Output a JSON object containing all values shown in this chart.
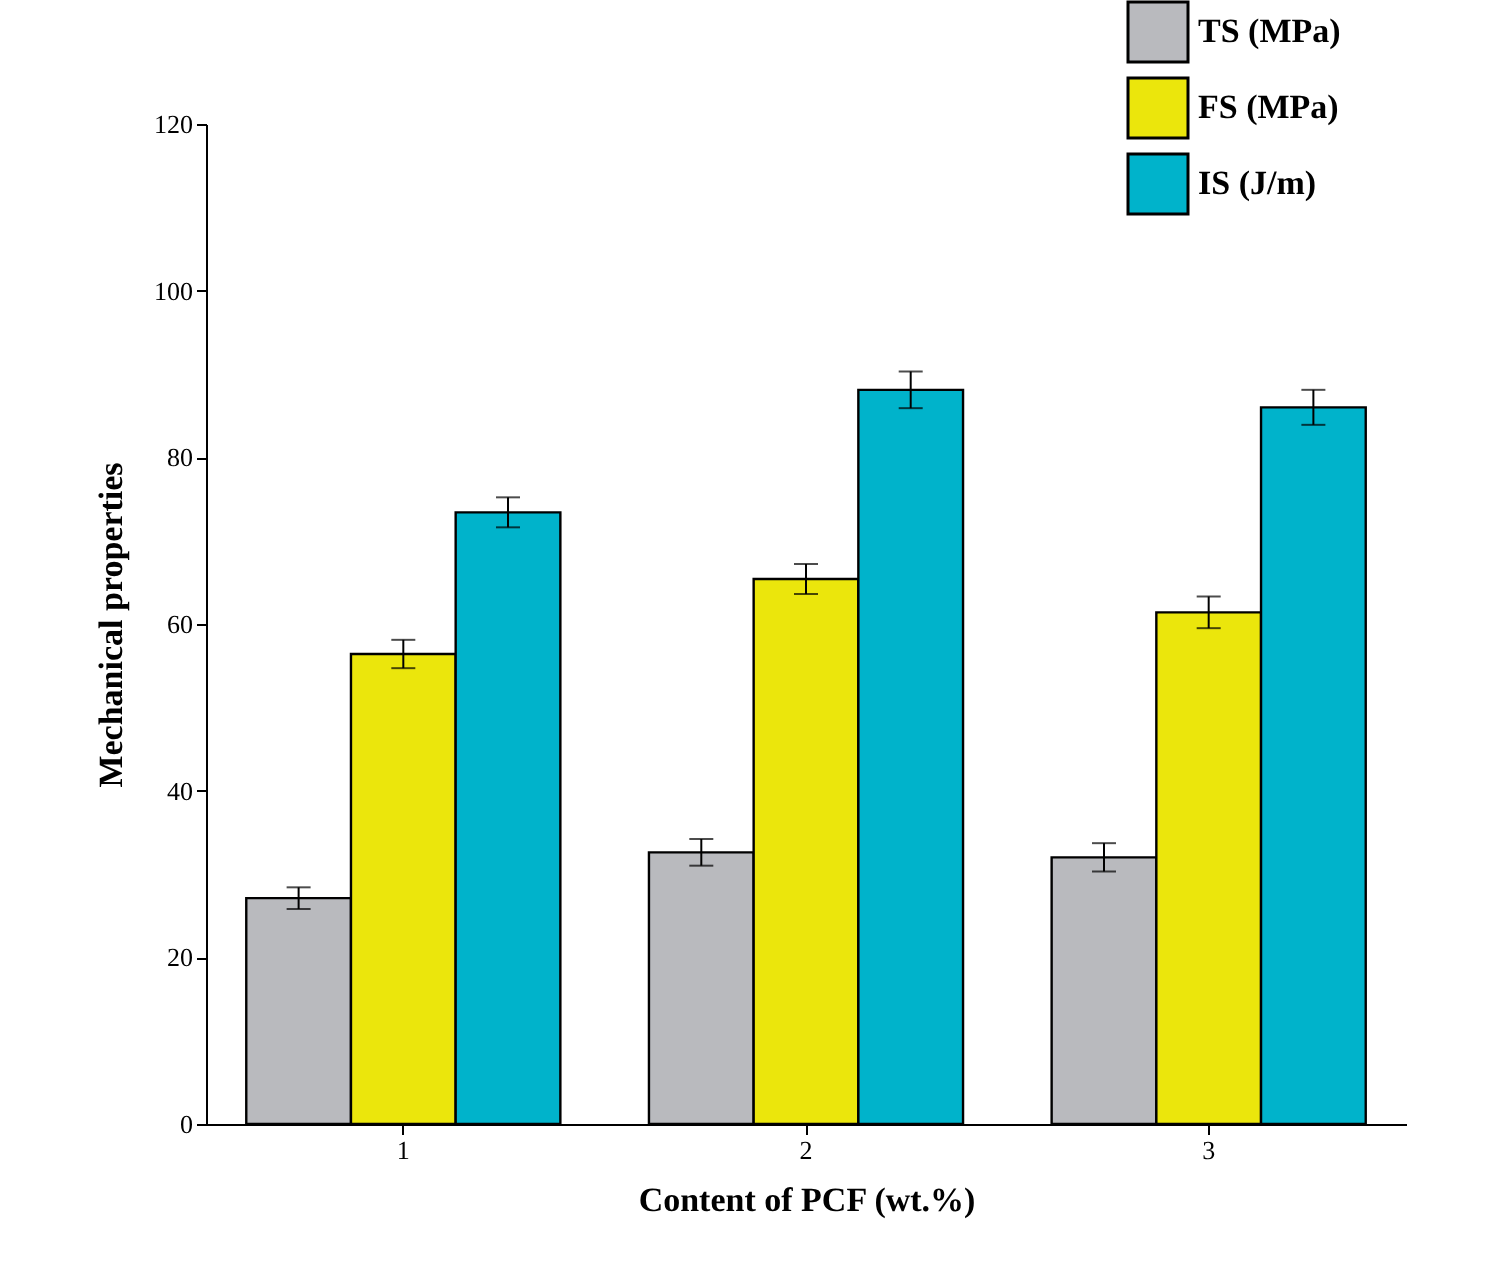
{
  "chart_data": {
    "type": "bar",
    "xlabel": "Content of PCF (wt.%)",
    "ylabel": "Mechanical properties",
    "categories": [
      "1",
      "2",
      "3"
    ],
    "series": [
      {
        "name": "TS (MPa)",
        "color": "#b9babe",
        "values": [
          27.1,
          32.6,
          32.0
        ],
        "errors": [
          1.3,
          1.6,
          1.7
        ]
      },
      {
        "name": "FS (MPa)",
        "color": "#ebe60c",
        "values": [
          56.4,
          65.4,
          61.4
        ],
        "errors": [
          1.7,
          1.8,
          1.9
        ]
      },
      {
        "name": "IS  (J/m)",
        "color": "#00b3cb",
        "values": [
          73.4,
          88.1,
          86.0
        ],
        "errors": [
          1.8,
          2.2,
          2.1
        ]
      }
    ],
    "ylim": [
      0,
      120
    ],
    "yticks": [
      0,
      20,
      40,
      60,
      80,
      100,
      120
    ],
    "grid": false,
    "legend": "top right"
  }
}
